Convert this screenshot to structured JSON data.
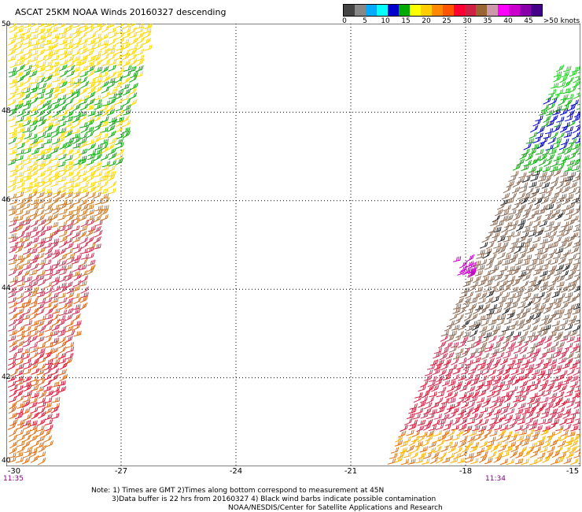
{
  "header": {
    "title": "ASCAT 25KM NOAA Winds 20160327 descending"
  },
  "legend": {
    "colors": [
      "#444444",
      "#888888",
      "#00aaff",
      "#00ffff",
      "#0000cc",
      "#00aa00",
      "#ffff00",
      "#ffcc00",
      "#ff8800",
      "#ff5500",
      "#ff0033",
      "#cc2244",
      "#996633",
      "#cc99aa",
      "#ff00ff",
      "#cc00cc",
      "#8800aa",
      "#440088"
    ],
    "labels": [
      "0",
      "5",
      "10",
      "15",
      "20",
      "25",
      "30",
      "35",
      "40",
      "45",
      ">50 knots"
    ]
  },
  "axes": {
    "x_labels": [
      "-30",
      "-27",
      "-24",
      "-21",
      "-18",
      "-15"
    ],
    "y_labels": [
      "40",
      "42",
      "44",
      "46",
      "48",
      "50"
    ]
  },
  "swath_times": {
    "left": "11:35",
    "right": "11:34"
  },
  "notes": {
    "line1": "Note: 1) Times are GMT 2)Times along bottom correspond to measurement at 45N",
    "line2": "3)Data buffer is 22 hrs from 20160327 4) Black wind barbs indicate possible contamination",
    "line3": "NOAA/NESDIS/Center for Satellite Applications and Research"
  }
}
